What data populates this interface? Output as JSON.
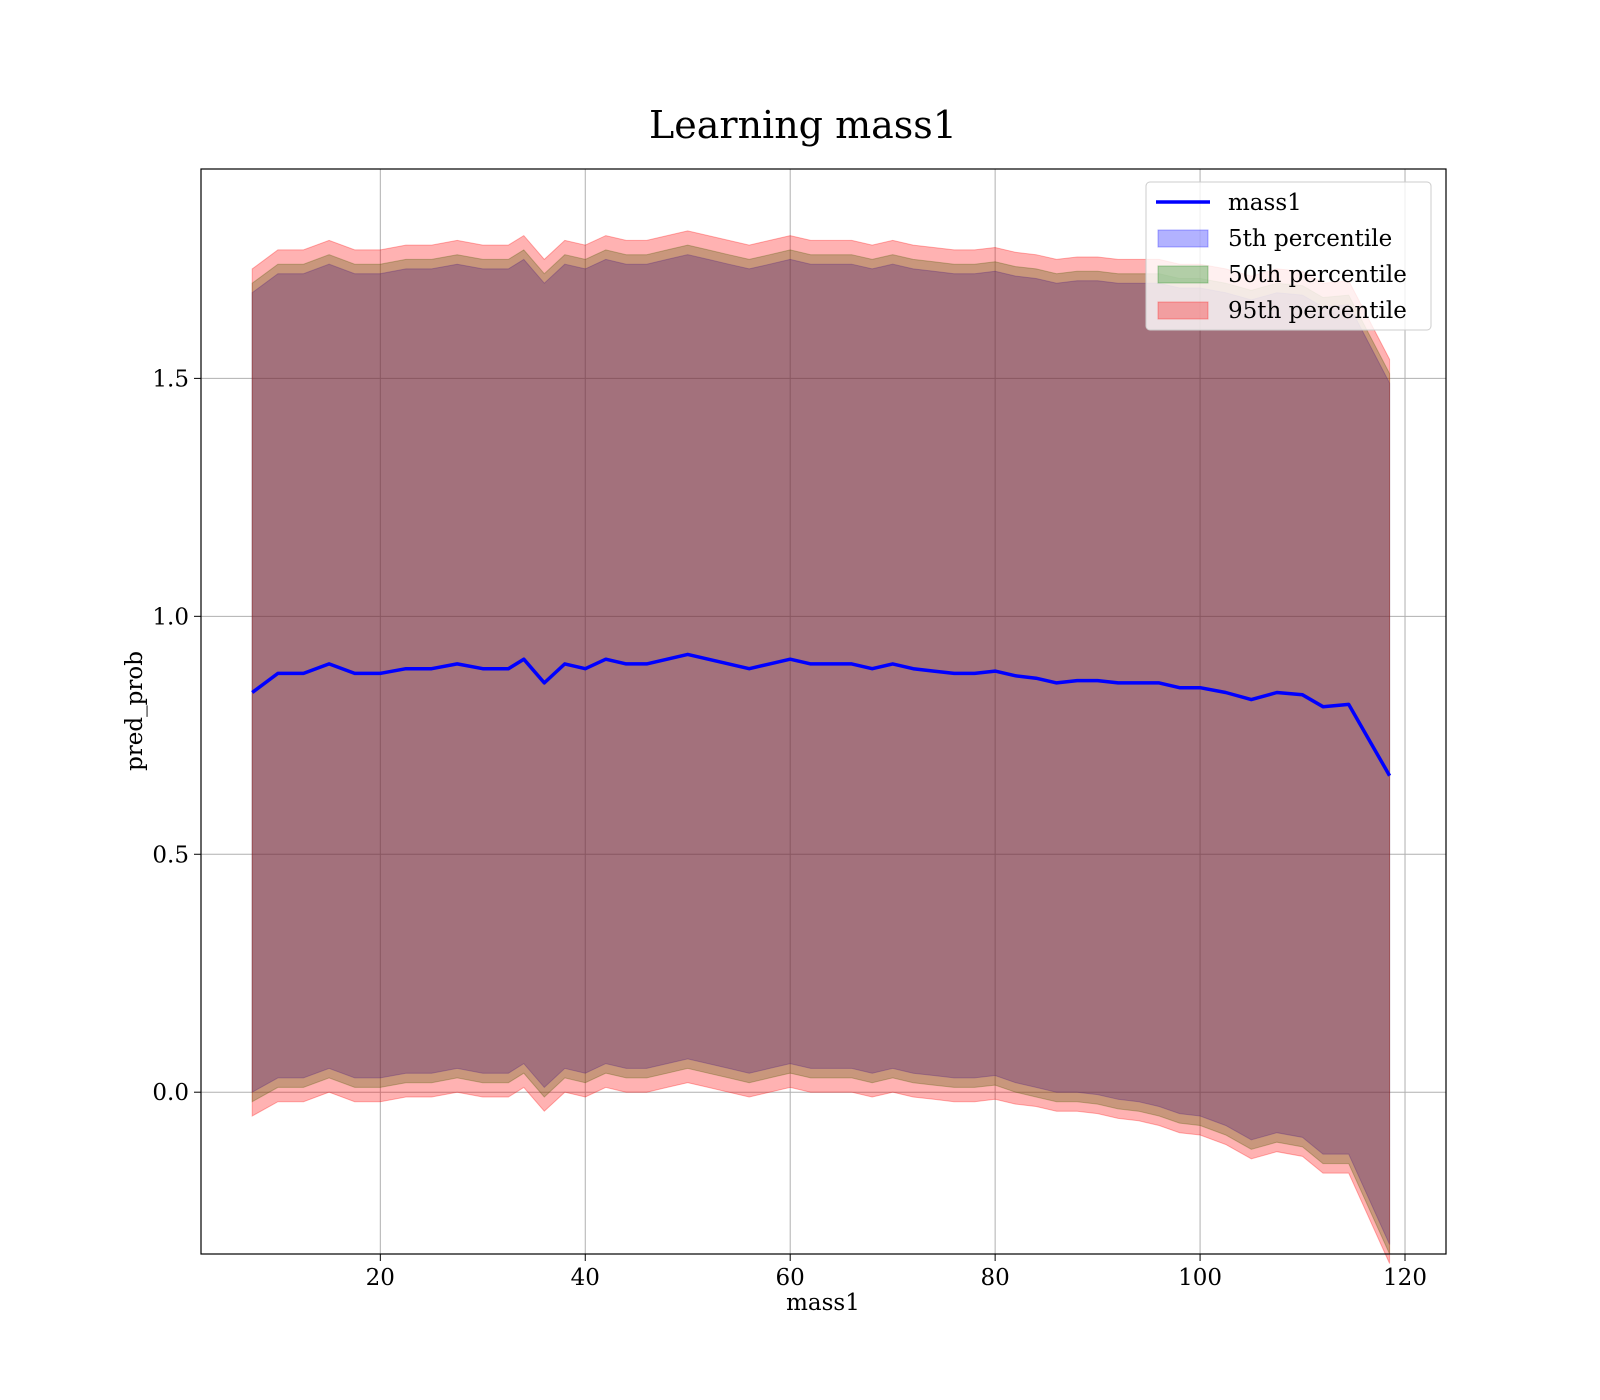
{
  "chart_data": {
    "type": "area",
    "title": "Learning mass1",
    "xlabel": "mass1",
    "ylabel": "pred_prob",
    "xlim": [
      2.5,
      124.0
    ],
    "ylim": [
      -0.34,
      1.94
    ],
    "xticks": [
      20,
      40,
      60,
      80,
      100,
      120
    ],
    "yticks": [
      0.0,
      0.5,
      1.0,
      1.5
    ],
    "grid": true,
    "legend_position": "top-right",
    "x": [
      7.5,
      10,
      12.5,
      15,
      17.5,
      20,
      22.5,
      25,
      27.5,
      30,
      32.5,
      34,
      36,
      38,
      40,
      42,
      44,
      46,
      48,
      50,
      52,
      54,
      56,
      58,
      60,
      62,
      64,
      66,
      68,
      70,
      72,
      74,
      76,
      78,
      80,
      82,
      84,
      86,
      88,
      90,
      92,
      94,
      96,
      98,
      100,
      102.5,
      105,
      107.5,
      110,
      112,
      114.5,
      118.5
    ],
    "series": [
      {
        "name": "mass1",
        "kind": "line",
        "color": "#0000ff",
        "values": [
          0.84,
          0.88,
          0.88,
          0.9,
          0.88,
          0.88,
          0.89,
          0.89,
          0.9,
          0.89,
          0.89,
          0.91,
          0.86,
          0.9,
          0.89,
          0.91,
          0.9,
          0.9,
          0.91,
          0.92,
          0.91,
          0.9,
          0.89,
          0.9,
          0.91,
          0.9,
          0.9,
          0.9,
          0.89,
          0.9,
          0.89,
          0.885,
          0.88,
          0.88,
          0.885,
          0.875,
          0.87,
          0.86,
          0.865,
          0.865,
          0.86,
          0.86,
          0.86,
          0.85,
          0.85,
          0.84,
          0.825,
          0.84,
          0.835,
          0.81,
          0.815,
          0.665
        ]
      },
      {
        "name": "5th percentile",
        "kind": "band",
        "color": "#0000ff",
        "lower": [
          0.0,
          0.03,
          0.03,
          0.05,
          0.03,
          0.03,
          0.04,
          0.04,
          0.05,
          0.04,
          0.04,
          0.06,
          0.01,
          0.05,
          0.04,
          0.06,
          0.05,
          0.05,
          0.06,
          0.07,
          0.06,
          0.05,
          0.04,
          0.05,
          0.06,
          0.05,
          0.05,
          0.05,
          0.04,
          0.05,
          0.04,
          0.035,
          0.03,
          0.03,
          0.035,
          0.02,
          0.01,
          0.0,
          0.0,
          -0.005,
          -0.015,
          -0.02,
          -0.03,
          -0.045,
          -0.05,
          -0.07,
          -0.1,
          -0.085,
          -0.095,
          -0.13,
          -0.13,
          -0.32
        ],
        "upper": [
          1.68,
          1.72,
          1.72,
          1.74,
          1.72,
          1.72,
          1.73,
          1.73,
          1.74,
          1.73,
          1.73,
          1.75,
          1.7,
          1.74,
          1.73,
          1.75,
          1.74,
          1.74,
          1.75,
          1.76,
          1.75,
          1.74,
          1.73,
          1.74,
          1.75,
          1.74,
          1.74,
          1.74,
          1.73,
          1.74,
          1.73,
          1.725,
          1.72,
          1.72,
          1.725,
          1.715,
          1.71,
          1.7,
          1.705,
          1.705,
          1.7,
          1.7,
          1.7,
          1.69,
          1.69,
          1.68,
          1.665,
          1.68,
          1.675,
          1.65,
          1.655,
          1.49
        ]
      },
      {
        "name": "50th percentile",
        "kind": "band",
        "color": "#008000",
        "lower": [
          -0.02,
          0.01,
          0.01,
          0.03,
          0.01,
          0.01,
          0.02,
          0.02,
          0.03,
          0.02,
          0.02,
          0.04,
          -0.01,
          0.03,
          0.02,
          0.04,
          0.03,
          0.03,
          0.04,
          0.05,
          0.04,
          0.03,
          0.02,
          0.03,
          0.04,
          0.03,
          0.03,
          0.03,
          0.02,
          0.03,
          0.02,
          0.015,
          0.01,
          0.01,
          0.015,
          0.0,
          -0.01,
          -0.02,
          -0.02,
          -0.025,
          -0.035,
          -0.04,
          -0.05,
          -0.065,
          -0.07,
          -0.09,
          -0.12,
          -0.105,
          -0.115,
          -0.15,
          -0.15,
          -0.34
        ],
        "upper": [
          1.7,
          1.74,
          1.74,
          1.76,
          1.74,
          1.74,
          1.75,
          1.75,
          1.76,
          1.75,
          1.75,
          1.77,
          1.72,
          1.76,
          1.75,
          1.77,
          1.76,
          1.76,
          1.77,
          1.78,
          1.77,
          1.76,
          1.75,
          1.76,
          1.77,
          1.76,
          1.76,
          1.76,
          1.75,
          1.76,
          1.75,
          1.745,
          1.74,
          1.74,
          1.745,
          1.735,
          1.73,
          1.72,
          1.725,
          1.725,
          1.72,
          1.72,
          1.72,
          1.71,
          1.71,
          1.7,
          1.685,
          1.7,
          1.695,
          1.67,
          1.675,
          1.51
        ]
      },
      {
        "name": "95th percentile",
        "kind": "band",
        "color": "#ff0000",
        "lower": [
          -0.05,
          -0.02,
          -0.02,
          0.0,
          -0.02,
          -0.02,
          -0.01,
          -0.01,
          0.0,
          -0.01,
          -0.01,
          0.01,
          -0.04,
          0.0,
          -0.01,
          0.01,
          0.0,
          0.0,
          0.01,
          0.02,
          0.01,
          0.0,
          -0.01,
          0.0,
          0.01,
          0.0,
          0.0,
          0.0,
          -0.01,
          0.0,
          -0.01,
          -0.015,
          -0.02,
          -0.02,
          -0.015,
          -0.025,
          -0.03,
          -0.04,
          -0.04,
          -0.045,
          -0.055,
          -0.06,
          -0.07,
          -0.085,
          -0.09,
          -0.11,
          -0.14,
          -0.125,
          -0.135,
          -0.17,
          -0.17,
          -0.36
        ],
        "upper": [
          1.73,
          1.77,
          1.77,
          1.79,
          1.77,
          1.77,
          1.78,
          1.78,
          1.79,
          1.78,
          1.78,
          1.8,
          1.75,
          1.79,
          1.78,
          1.8,
          1.79,
          1.79,
          1.8,
          1.81,
          1.8,
          1.79,
          1.78,
          1.79,
          1.8,
          1.79,
          1.79,
          1.79,
          1.78,
          1.79,
          1.78,
          1.775,
          1.77,
          1.77,
          1.775,
          1.765,
          1.76,
          1.75,
          1.755,
          1.755,
          1.75,
          1.75,
          1.75,
          1.74,
          1.74,
          1.73,
          1.715,
          1.73,
          1.725,
          1.7,
          1.705,
          1.54
        ]
      }
    ]
  }
}
